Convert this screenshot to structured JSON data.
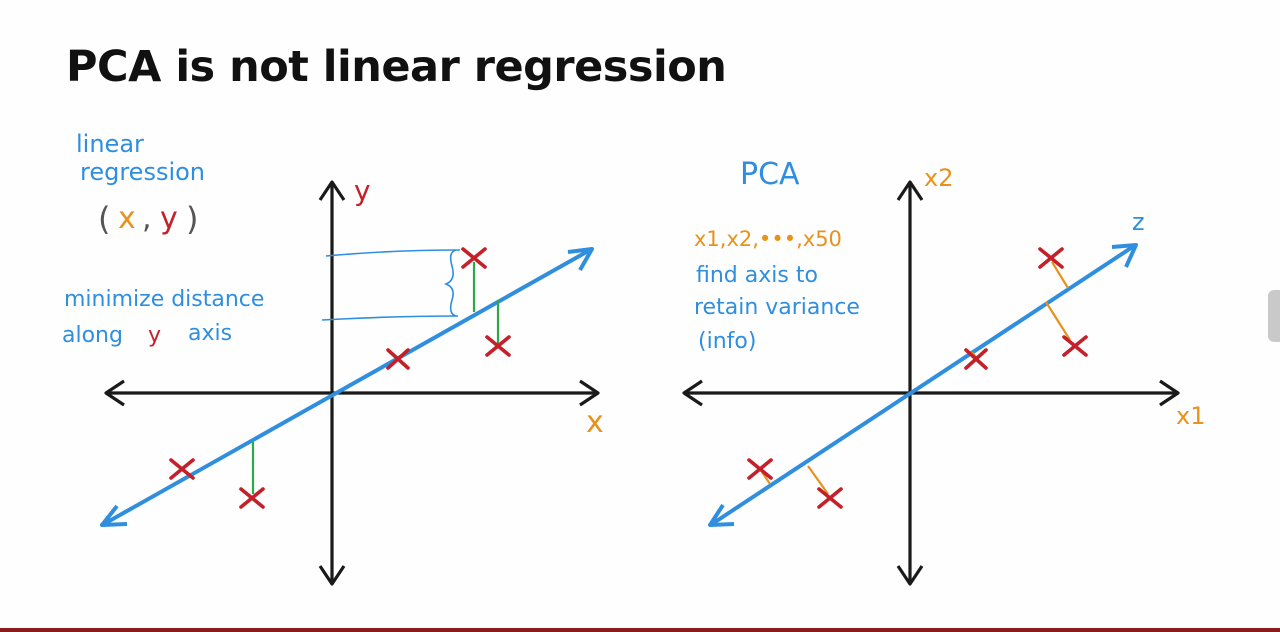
{
  "title": "PCA is not linear regression",
  "left_diagram": {
    "heading_line1": "linear",
    "heading_line2": "regression",
    "pair_open": "(",
    "pair_x": "x",
    "pair_comma": ",",
    "pair_y": "y",
    "pair_close": ")",
    "note_line1": "minimize distance",
    "note_line2_a": "along",
    "note_line2_y": "y",
    "note_line2_b": "axis",
    "axis_y_label": "y",
    "axis_x_label": "x"
  },
  "right_diagram": {
    "heading": "PCA",
    "features": "x1,x2,•••,x50",
    "note_line1": "find axis to",
    "note_line2": "retain variance",
    "note_line3": "(info)",
    "axis_x2_label": "x2",
    "axis_x1_label": "x1",
    "axis_z_label": "z"
  },
  "colors": {
    "blue": "#2f8fde",
    "red": "#c3202a",
    "orange": "#e8921c",
    "green": "#2aa84a",
    "black": "#1a1a1a"
  }
}
